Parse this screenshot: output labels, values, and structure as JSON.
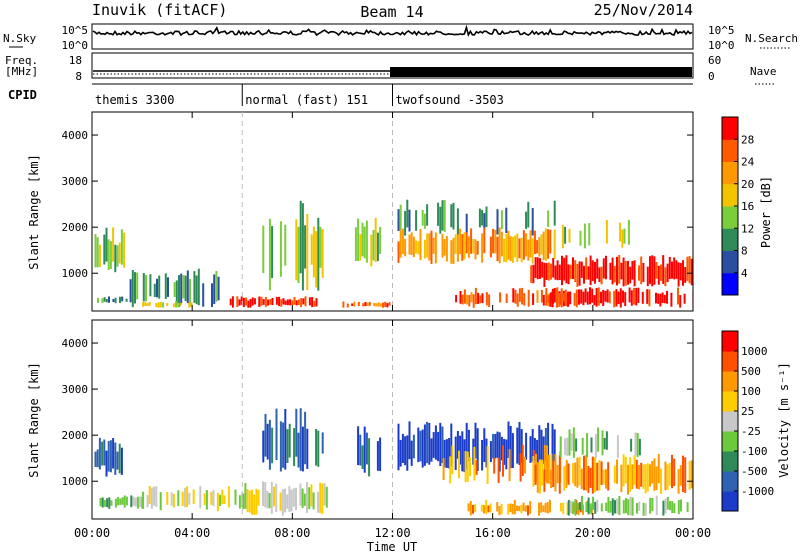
{
  "header": {
    "station": "Inuvik (fitACF)",
    "beam": "Beam 14",
    "date": "25/Nov/2014"
  },
  "nsky_panel": {
    "left_label": "N.Sky",
    "left_ticks": [
      "10^5",
      "10^0"
    ],
    "right_label": "N.Search",
    "right_ticks": [
      "10^5",
      "10^0"
    ]
  },
  "freq_panel": {
    "left_label_1": "Freq.",
    "left_label_2": "[MHz]",
    "left_ticks": [
      "18",
      "8"
    ],
    "right_label": "Nave",
    "right_ticks": [
      "60",
      "0"
    ]
  },
  "cpid": {
    "label": "CPID",
    "segments": [
      {
        "name": "themis 3300",
        "start": 0,
        "end": 6
      },
      {
        "name": "normal (fast) 151",
        "start": 6,
        "end": 12
      },
      {
        "name": "twofsound -3503",
        "start": 12,
        "end": 24
      }
    ]
  },
  "chart_data": [
    {
      "type": "heatmap",
      "quantity": "Power",
      "ylabel": "Slant Range [km]",
      "ylim": [
        180,
        4500
      ],
      "yticks": [
        "1000",
        "2000",
        "3000",
        "4000"
      ],
      "colorbar_label": "Power [dB]",
      "colorbar_ticks": [
        "4",
        "8",
        "12",
        "16",
        "20",
        "24",
        "28"
      ],
      "colorbar_colors": [
        "#0000ff",
        "#2a4fa0",
        "#2e8b57",
        "#7ccd3c",
        "#f2c400",
        "#ff9900",
        "#ff5a00",
        "#ff0000"
      ]
    },
    {
      "type": "heatmap",
      "quantity": "Velocity",
      "ylabel": "Slant Range [km]",
      "ylim": [
        180,
        4500
      ],
      "yticks": [
        "1000",
        "2000",
        "3000",
        "4000"
      ],
      "colorbar_label": "Velocity [m s⁻¹]",
      "colorbar_ticks": [
        "1000",
        "500",
        "100",
        "25",
        "-25",
        "-100",
        "-500",
        "-1000"
      ],
      "colorbar_colors": [
        "#1a3cc8",
        "#2f62b0",
        "#2e8b57",
        "#6cc83c",
        "#c8c8c8",
        "#ffcc00",
        "#ff9900",
        "#ff5000",
        "#ff0000"
      ]
    }
  ],
  "xaxis": {
    "label": "Time UT",
    "ticks": [
      "00:00",
      "04:00",
      "08:00",
      "12:00",
      "16:00",
      "20:00",
      "00:00"
    ],
    "range_hours": [
      0,
      24
    ]
  }
}
